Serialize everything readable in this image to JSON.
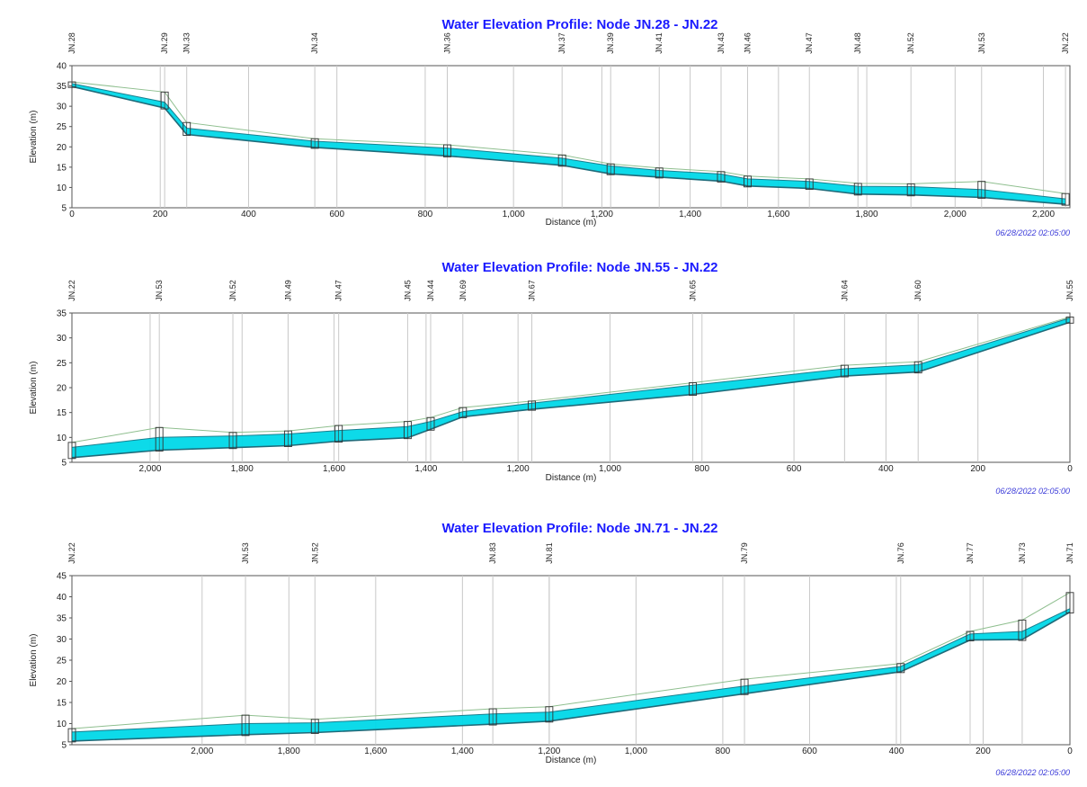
{
  "chart_data": [
    {
      "type": "area",
      "title": "Water Elevation Profile: Node JN.28 - JN.22",
      "xlabel": "Distance (m)",
      "ylabel": "Elevation (m)",
      "timestamp": "06/28/2022 02:05:00",
      "x_reversed": false,
      "xlim": [
        0,
        2260
      ],
      "ylim": [
        5,
        40
      ],
      "x_ticks": [
        0,
        200,
        400,
        600,
        800,
        1000,
        1200,
        1400,
        1600,
        1800,
        2000,
        2200
      ],
      "x_tick_labels": [
        "0",
        "200",
        "400",
        "600",
        "800",
        "1,000",
        "1,200",
        "1,400",
        "1,600",
        "1,800",
        "2,000",
        "2,200"
      ],
      "y_ticks": [
        5,
        10,
        15,
        20,
        25,
        30,
        35,
        40
      ],
      "y_tick_labels": [
        "5",
        "10",
        "15",
        "20",
        "25",
        "30",
        "35",
        "40"
      ],
      "grid": true,
      "nodes": [
        {
          "name": "JN.28",
          "x": 0
        },
        {
          "name": "JN.29",
          "x": 210
        },
        {
          "name": "JN.33",
          "x": 260
        },
        {
          "name": "JN.34",
          "x": 550
        },
        {
          "name": "JN.36",
          "x": 850
        },
        {
          "name": "JN.37",
          "x": 1110
        },
        {
          "name": "JN.39",
          "x": 1220
        },
        {
          "name": "JN.41",
          "x": 1330
        },
        {
          "name": "JN.43",
          "x": 1470
        },
        {
          "name": "JN.46",
          "x": 1530
        },
        {
          "name": "JN.47",
          "x": 1670
        },
        {
          "name": "JN.48",
          "x": 1780
        },
        {
          "name": "JN.52",
          "x": 1900
        },
        {
          "name": "JN.53",
          "x": 2060
        },
        {
          "name": "JN.22",
          "x": 2250
        }
      ],
      "series": [
        {
          "name": "",
          "role": "invert",
          "color": "#1f6b7a",
          "values": [
            35.3,
            30.0,
            23.5,
            20.3,
            18.2,
            15.9,
            13.8,
            13.0,
            12.0,
            10.8,
            10.2,
            8.8,
            8.6,
            8.0,
            6.3
          ]
        },
        {
          "name": "",
          "role": "water",
          "color": "#00d8e8",
          "values": [
            35.6,
            31.0,
            24.6,
            21.4,
            19.7,
            17.2,
            15.3,
            14.2,
            13.3,
            12.1,
            11.5,
            10.3,
            10.2,
            9.5,
            7.2
          ]
        },
        {
          "name": "",
          "role": "ground",
          "color": "#8fbf8f",
          "values": [
            36.0,
            33.5,
            26.0,
            22.0,
            20.5,
            18.0,
            15.8,
            14.8,
            13.9,
            12.8,
            12.1,
            11.0,
            10.9,
            11.5,
            8.5
          ]
        }
      ]
    },
    {
      "type": "area",
      "title": "Water Elevation Profile: Node JN.55 - JN.22",
      "xlabel": "Distance (m)",
      "ylabel": "Elevation (m)",
      "timestamp": "06/28/2022 02:05:00",
      "x_reversed": true,
      "xlim": [
        0,
        2170
      ],
      "ylim": [
        5,
        35
      ],
      "x_ticks": [
        2000,
        1800,
        1600,
        1400,
        1200,
        1000,
        800,
        600,
        400,
        200,
        0
      ],
      "x_tick_labels": [
        "2,000",
        "1,800",
        "1,600",
        "1,400",
        "1,200",
        "1,000",
        "800",
        "600",
        "400",
        "200",
        "0"
      ],
      "y_ticks": [
        5,
        10,
        15,
        20,
        25,
        30,
        35
      ],
      "y_tick_labels": [
        "5",
        "10",
        "15",
        "20",
        "25",
        "30",
        "35"
      ],
      "grid": true,
      "nodes": [
        {
          "name": "JN.22",
          "x": 2170
        },
        {
          "name": "JN.53",
          "x": 1980
        },
        {
          "name": "JN.52",
          "x": 1820
        },
        {
          "name": "JN.49",
          "x": 1700
        },
        {
          "name": "JN.47",
          "x": 1590
        },
        {
          "name": "JN.45",
          "x": 1440
        },
        {
          "name": "JN.44",
          "x": 1390
        },
        {
          "name": "JN.69",
          "x": 1320
        },
        {
          "name": "JN.67",
          "x": 1170
        },
        {
          "name": "JN.65",
          "x": 820
        },
        {
          "name": "JN.64",
          "x": 490
        },
        {
          "name": "JN.60",
          "x": 330
        },
        {
          "name": "JN.55",
          "x": 0
        }
      ],
      "series": [
        {
          "name": "",
          "role": "invert",
          "color": "#1f6b7a",
          "values": [
            6.3,
            7.8,
            8.3,
            8.7,
            9.6,
            10.3,
            12.0,
            14.5,
            16.0,
            19.0,
            22.7,
            23.5,
            33.5
          ]
        },
        {
          "name": "",
          "role": "water",
          "color": "#00d8e8",
          "values": [
            8.0,
            10.0,
            10.3,
            10.7,
            11.4,
            12.2,
            13.2,
            15.2,
            16.9,
            20.5,
            23.8,
            24.6,
            34.0
          ]
        },
        {
          "name": "",
          "role": "ground",
          "color": "#8fbf8f",
          "values": [
            9.0,
            12.0,
            11.0,
            11.3,
            12.4,
            13.2,
            14.0,
            16.0,
            17.3,
            21.0,
            24.5,
            25.2,
            34.2
          ]
        }
      ]
    },
    {
      "type": "area",
      "title": "Water Elevation Profile: Node JN.71 - JN.22",
      "xlabel": "Distance (m)",
      "ylabel": "Elevation (m)",
      "timestamp": "06/28/2022 02:05:00",
      "x_reversed": true,
      "xlim": [
        0,
        2300
      ],
      "ylim": [
        5,
        45
      ],
      "x_ticks": [
        2000,
        1800,
        1600,
        1400,
        1200,
        1000,
        800,
        600,
        400,
        200,
        0
      ],
      "x_tick_labels": [
        "2,000",
        "1,800",
        "1,600",
        "1,400",
        "1,200",
        "1,000",
        "800",
        "600",
        "400",
        "200",
        "0"
      ],
      "y_ticks": [
        5,
        10,
        15,
        20,
        25,
        30,
        35,
        40,
        45
      ],
      "y_tick_labels": [
        "5",
        "10",
        "15",
        "20",
        "25",
        "30",
        "35",
        "40",
        "45"
      ],
      "grid": true,
      "nodes": [
        {
          "name": "JN.22",
          "x": 2300
        },
        {
          "name": "JN.53",
          "x": 1900
        },
        {
          "name": "JN.52",
          "x": 1740
        },
        {
          "name": "JN.83",
          "x": 1330
        },
        {
          "name": "JN.81",
          "x": 1200
        },
        {
          "name": "JN.79",
          "x": 750
        },
        {
          "name": "JN.76",
          "x": 390
        },
        {
          "name": "JN.77",
          "x": 230
        },
        {
          "name": "JN.73",
          "x": 110
        },
        {
          "name": "JN.71",
          "x": 0
        }
      ],
      "series": [
        {
          "name": "",
          "role": "invert",
          "color": "#1f6b7a",
          "values": [
            6.3,
            7.8,
            8.3,
            10.3,
            11.0,
            17.5,
            22.7,
            30.2,
            30.3,
            36.8
          ]
        },
        {
          "name": "",
          "role": "water",
          "color": "#00d8e8",
          "values": [
            8.0,
            10.0,
            10.2,
            12.3,
            12.7,
            18.9,
            23.5,
            31.2,
            31.8,
            37.2
          ]
        },
        {
          "name": "",
          "role": "ground",
          "color": "#8fbf8f",
          "values": [
            8.8,
            12.0,
            11.0,
            13.5,
            14.0,
            20.5,
            24.2,
            31.8,
            34.5,
            41.0
          ]
        }
      ]
    }
  ]
}
